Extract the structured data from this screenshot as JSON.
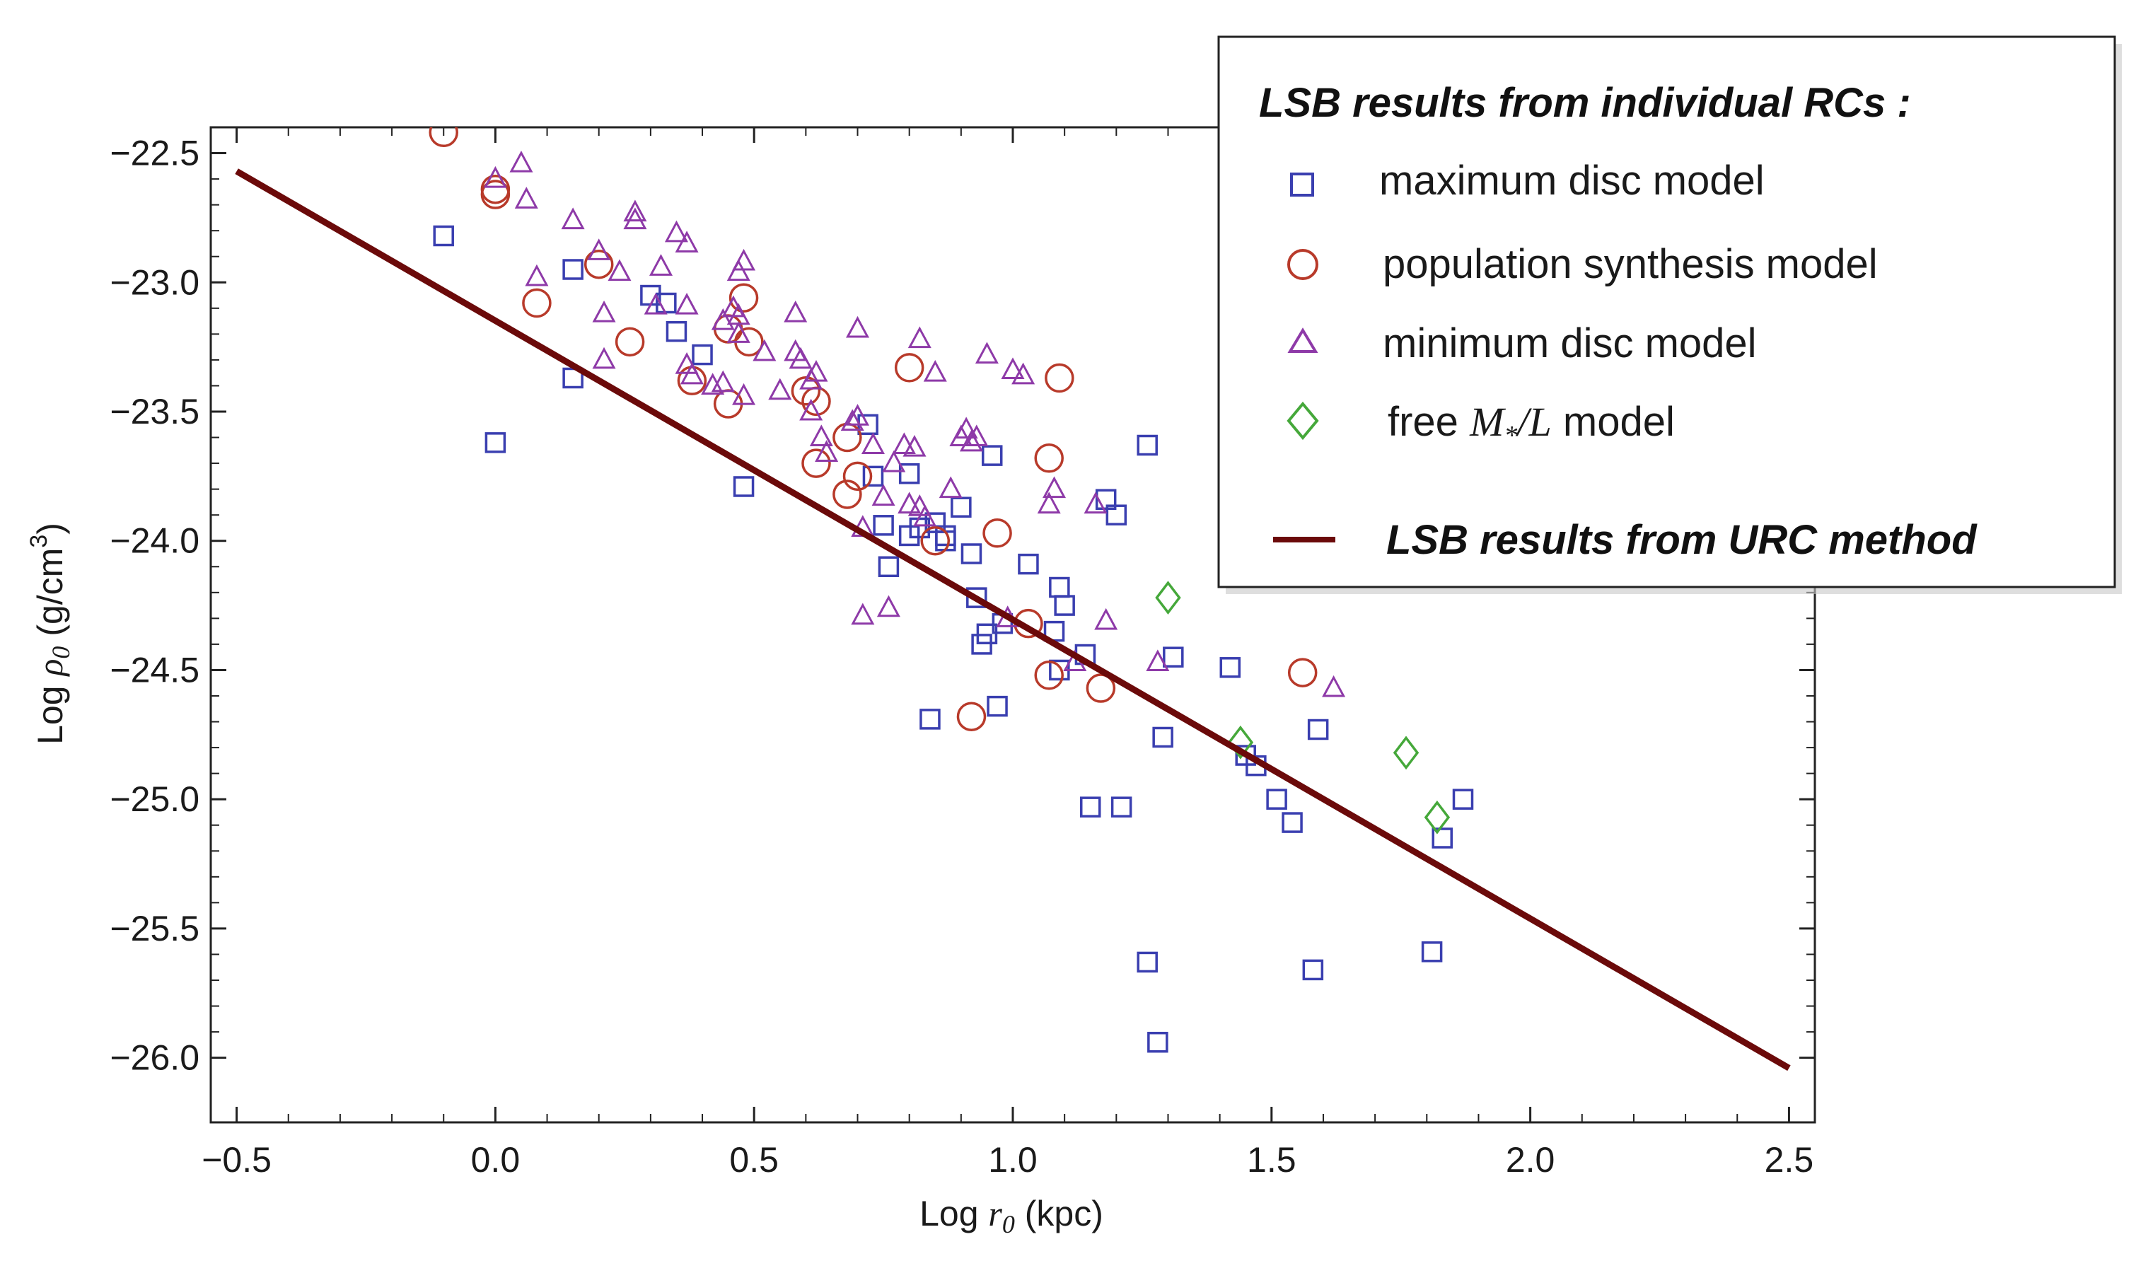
{
  "chart_data": {
    "type": "scatter",
    "title": "",
    "xlabel_prefix": "Log ",
    "xlabel_symbol": "r",
    "xlabel_sub": "0",
    "xlabel_suffix": " (kpc)",
    "ylabel_prefix": "Log ",
    "ylabel_symbol": "ρ",
    "ylabel_sub": "0",
    "ylabel_suffix": " (g/cm",
    "ylabel_sup": "3",
    "ylabel_close": ")",
    "xlim": [
      -0.55,
      2.55
    ],
    "ylim": [
      -26.25,
      -22.4
    ],
    "xticks": [
      -0.5,
      0.0,
      0.5,
      1.0,
      1.5,
      2.0,
      2.5
    ],
    "xtick_labels": [
      "−0.5",
      "0.0",
      "0.5",
      "1.0",
      "1.5",
      "2.0",
      "2.5"
    ],
    "yticks": [
      -22.5,
      -23.0,
      -23.5,
      -24.0,
      -24.5,
      -25.0,
      -25.5,
      -26.0
    ],
    "ytick_labels": [
      "−22.5",
      "−23.0",
      "−23.5",
      "−24.0",
      "−24.5",
      "−25.0",
      "−25.5",
      "−26.0"
    ],
    "legend": {
      "title": "LSB results from individual RCs :",
      "placement": "top-right",
      "entries": [
        {
          "marker": "square",
          "label": "maximum disc model"
        },
        {
          "marker": "circle",
          "label": "population synthesis model"
        },
        {
          "marker": "triangle",
          "label": "minimum disc model"
        },
        {
          "marker": "diamond",
          "label_prefix": "free ",
          "label_math_M": "M",
          "label_math_sub": "*",
          "label_math_rest": "/L",
          "label_suffix": " model"
        }
      ],
      "line_label": "LSB results from URC method"
    },
    "line": {
      "name": "LSB results from URC method",
      "x": [
        -0.5,
        2.5
      ],
      "y": [
        -22.57,
        -26.04
      ],
      "color": "#6b0a0a"
    },
    "series": [
      {
        "name": "maximum disc model",
        "marker": "square",
        "color": "#3a3fb0",
        "points": [
          [
            -0.1,
            -22.82
          ],
          [
            0.0,
            -23.62
          ],
          [
            0.15,
            -22.95
          ],
          [
            0.15,
            -23.37
          ],
          [
            0.3,
            -23.05
          ],
          [
            0.33,
            -23.08
          ],
          [
            0.35,
            -23.19
          ],
          [
            0.4,
            -23.28
          ],
          [
            0.48,
            -23.79
          ],
          [
            0.72,
            -23.55
          ],
          [
            0.73,
            -23.75
          ],
          [
            0.75,
            -23.94
          ],
          [
            0.76,
            -24.1
          ],
          [
            0.8,
            -23.74
          ],
          [
            0.8,
            -23.98
          ],
          [
            0.82,
            -23.95
          ],
          [
            0.84,
            -24.69
          ],
          [
            0.85,
            -23.93
          ],
          [
            0.87,
            -23.98
          ],
          [
            0.87,
            -24.0
          ],
          [
            0.9,
            -23.87
          ],
          [
            0.92,
            -24.05
          ],
          [
            0.93,
            -24.22
          ],
          [
            0.94,
            -24.4
          ],
          [
            0.95,
            -24.36
          ],
          [
            0.96,
            -23.67
          ],
          [
            0.97,
            -24.64
          ],
          [
            0.98,
            -24.32
          ],
          [
            1.03,
            -24.09
          ],
          [
            1.08,
            -24.35
          ],
          [
            1.09,
            -24.18
          ],
          [
            1.09,
            -24.5
          ],
          [
            1.1,
            -24.25
          ],
          [
            1.14,
            -24.44
          ],
          [
            1.15,
            -25.03
          ],
          [
            1.18,
            -23.84
          ],
          [
            1.2,
            -23.9
          ],
          [
            1.21,
            -25.03
          ],
          [
            1.26,
            -23.63
          ],
          [
            1.26,
            -25.63
          ],
          [
            1.28,
            -25.94
          ],
          [
            1.29,
            -24.76
          ],
          [
            1.31,
            -24.45
          ],
          [
            1.42,
            -24.49
          ],
          [
            1.45,
            -24.83
          ],
          [
            1.47,
            -24.87
          ],
          [
            1.51,
            -25.0
          ],
          [
            1.54,
            -25.09
          ],
          [
            1.58,
            -25.66
          ],
          [
            1.59,
            -24.73
          ],
          [
            1.81,
            -25.59
          ],
          [
            1.83,
            -25.15
          ],
          [
            1.87,
            -25.0
          ]
        ]
      },
      {
        "name": "population synthesis model",
        "marker": "circle",
        "color": "#b83a2a",
        "points": [
          [
            -0.1,
            -22.42
          ],
          [
            0.0,
            -22.64
          ],
          [
            0.0,
            -22.66
          ],
          [
            0.08,
            -23.08
          ],
          [
            0.2,
            -22.93
          ],
          [
            0.26,
            -23.23
          ],
          [
            0.38,
            -23.38
          ],
          [
            0.45,
            -23.18
          ],
          [
            0.45,
            -23.47
          ],
          [
            0.48,
            -23.06
          ],
          [
            0.49,
            -23.23
          ],
          [
            0.6,
            -23.42
          ],
          [
            0.62,
            -23.46
          ],
          [
            0.62,
            -23.7
          ],
          [
            0.68,
            -23.6
          ],
          [
            0.68,
            -23.82
          ],
          [
            0.7,
            -23.75
          ],
          [
            0.8,
            -23.33
          ],
          [
            0.85,
            -24.0
          ],
          [
            0.92,
            -24.68
          ],
          [
            0.97,
            -23.97
          ],
          [
            1.03,
            -24.32
          ],
          [
            1.07,
            -23.68
          ],
          [
            1.07,
            -24.52
          ],
          [
            1.09,
            -23.37
          ],
          [
            1.17,
            -24.57
          ],
          [
            1.56,
            -24.51
          ]
        ]
      },
      {
        "name": "minimum disc model",
        "marker": "triangle",
        "color": "#8e3aa8",
        "points": [
          [
            0.0,
            -22.6
          ],
          [
            0.05,
            -22.54
          ],
          [
            0.06,
            -22.68
          ],
          [
            0.08,
            -22.98
          ],
          [
            0.15,
            -22.76
          ],
          [
            0.2,
            -22.88
          ],
          [
            0.21,
            -23.12
          ],
          [
            0.21,
            -23.3
          ],
          [
            0.24,
            -22.96
          ],
          [
            0.27,
            -22.73
          ],
          [
            0.27,
            -22.76
          ],
          [
            0.31,
            -23.09
          ],
          [
            0.32,
            -22.94
          ],
          [
            0.35,
            -22.81
          ],
          [
            0.37,
            -22.85
          ],
          [
            0.37,
            -23.09
          ],
          [
            0.37,
            -23.32
          ],
          [
            0.38,
            -23.36
          ],
          [
            0.42,
            -23.4
          ],
          [
            0.44,
            -23.39
          ],
          [
            0.44,
            -23.15
          ],
          [
            0.46,
            -23.1
          ],
          [
            0.47,
            -22.96
          ],
          [
            0.47,
            -23.13
          ],
          [
            0.47,
            -23.2
          ],
          [
            0.48,
            -22.92
          ],
          [
            0.48,
            -23.44
          ],
          [
            0.52,
            -23.27
          ],
          [
            0.55,
            -23.42
          ],
          [
            0.58,
            -23.12
          ],
          [
            0.58,
            -23.27
          ],
          [
            0.59,
            -23.3
          ],
          [
            0.61,
            -23.38
          ],
          [
            0.61,
            -23.5
          ],
          [
            0.62,
            -23.35
          ],
          [
            0.63,
            -23.6
          ],
          [
            0.64,
            -23.66
          ],
          [
            0.69,
            -23.54
          ],
          [
            0.7,
            -23.18
          ],
          [
            0.7,
            -23.52
          ],
          [
            0.71,
            -23.95
          ],
          [
            0.71,
            -24.29
          ],
          [
            0.73,
            -23.63
          ],
          [
            0.75,
            -23.83
          ],
          [
            0.76,
            -24.26
          ],
          [
            0.77,
            -23.7
          ],
          [
            0.79,
            -23.63
          ],
          [
            0.8,
            -23.86
          ],
          [
            0.81,
            -23.64
          ],
          [
            0.82,
            -23.22
          ],
          [
            0.82,
            -23.87
          ],
          [
            0.83,
            -23.91
          ],
          [
            0.85,
            -23.35
          ],
          [
            0.88,
            -23.8
          ],
          [
            0.9,
            -23.6
          ],
          [
            0.91,
            -23.57
          ],
          [
            0.92,
            -23.62
          ],
          [
            0.93,
            -23.6
          ],
          [
            0.95,
            -23.28
          ],
          [
            0.99,
            -24.3
          ],
          [
            1.0,
            -23.34
          ],
          [
            1.02,
            -23.36
          ],
          [
            1.07,
            -23.86
          ],
          [
            1.08,
            -23.8
          ],
          [
            1.12,
            -24.47
          ],
          [
            1.16,
            -23.86
          ],
          [
            1.18,
            -24.31
          ],
          [
            1.28,
            -24.47
          ],
          [
            1.62,
            -24.57
          ]
        ]
      },
      {
        "name": "free M*/L model",
        "marker": "diamond",
        "color": "#45a83a",
        "points": [
          [
            1.3,
            -24.22
          ],
          [
            1.44,
            -24.78
          ],
          [
            1.76,
            -24.82
          ],
          [
            1.82,
            -25.07
          ]
        ]
      }
    ]
  }
}
